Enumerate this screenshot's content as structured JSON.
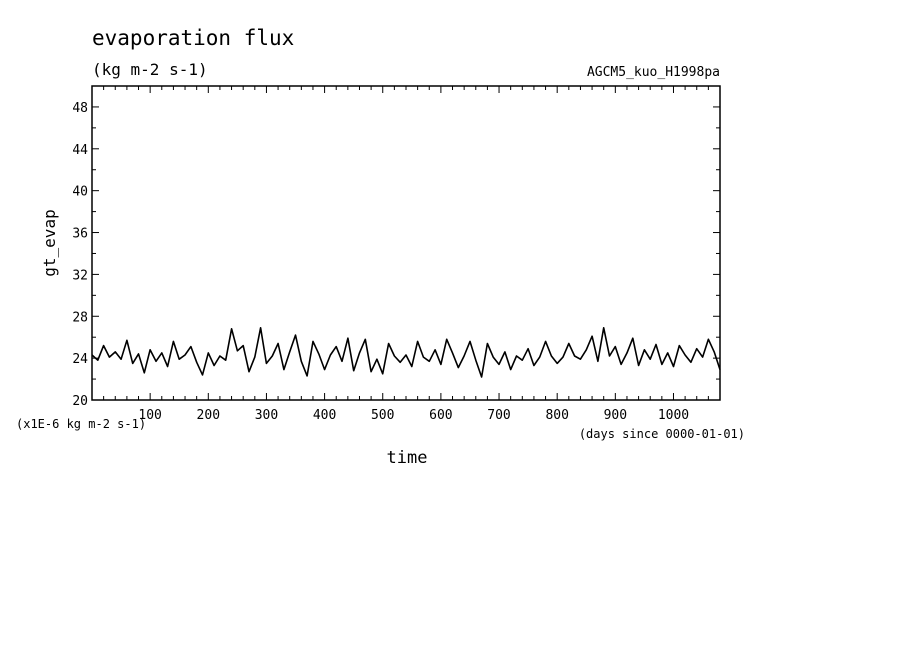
{
  "chart_data": {
    "type": "line",
    "title": "evaporation flux",
    "units": "(kg m-2 s-1)",
    "dataset": "AGCM5_kuo_H1998pa",
    "ylabel": "gt_evap",
    "xlabel": "time",
    "y_scale_note": "(x1E-6 kg m-2 s-1)",
    "x_unit_note": "(days since 0000-01-01)",
    "xlim": [
      0,
      1080
    ],
    "ylim": [
      20,
      50
    ],
    "x_ticks": [
      100,
      200,
      300,
      400,
      500,
      600,
      700,
      800,
      900,
      1000
    ],
    "y_ticks": [
      20,
      24,
      28,
      32,
      36,
      40,
      44,
      48
    ],
    "x_tick_labels": [
      "100",
      "200",
      "300",
      "400",
      "500",
      "600",
      "700",
      "800",
      "900",
      "1000"
    ],
    "y_tick_labels": [
      "20",
      "24",
      "28",
      "32",
      "36",
      "40",
      "44",
      "48"
    ],
    "series": [
      {
        "x": [
          0,
          10,
          20,
          30,
          40,
          50,
          60,
          70,
          80,
          90,
          100,
          110,
          120,
          130,
          140,
          150,
          160,
          170,
          180,
          190,
          200,
          210,
          220,
          230,
          240,
          250,
          260,
          270,
          280,
          290,
          300,
          310,
          320,
          330,
          340,
          350,
          360,
          370,
          380,
          390,
          400,
          410,
          420,
          430,
          440,
          450,
          460,
          470,
          480,
          490,
          500,
          510,
          520,
          530,
          540,
          550,
          560,
          570,
          580,
          590,
          600,
          610,
          620,
          630,
          640,
          650,
          660,
          670,
          680,
          690,
          700,
          710,
          720,
          730,
          740,
          750,
          760,
          770,
          780,
          790,
          800,
          810,
          820,
          830,
          840,
          850,
          860,
          870,
          880,
          890,
          900,
          910,
          920,
          930,
          940,
          950,
          960,
          970,
          980,
          990,
          1000,
          1010,
          1020,
          1030,
          1040,
          1050,
          1060,
          1070,
          1080
        ],
        "values": [
          24.3,
          23.8,
          25.2,
          24.1,
          24.6,
          23.9,
          25.7,
          23.5,
          24.4,
          22.6,
          24.8,
          23.7,
          24.5,
          23.2,
          25.6,
          23.9,
          24.3,
          25.1,
          23.6,
          22.4,
          24.5,
          23.3,
          24.2,
          23.8,
          26.8,
          24.7,
          25.2,
          22.7,
          24.1,
          26.9,
          23.5,
          24.2,
          25.4,
          22.9,
          24.6,
          26.2,
          23.7,
          22.3,
          25.6,
          24.4,
          22.9,
          24.3,
          25.1,
          23.7,
          25.9,
          22.8,
          24.5,
          25.8,
          22.7,
          23.9,
          22.5,
          25.4,
          24.2,
          23.6,
          24.3,
          23.2,
          25.6,
          24.1,
          23.7,
          24.8,
          23.4,
          25.8,
          24.5,
          23.1,
          24.2,
          25.6,
          23.8,
          22.2,
          25.4,
          24.1,
          23.4,
          24.6,
          22.9,
          24.2,
          23.8,
          24.9,
          23.3,
          24.1,
          25.6,
          24.2,
          23.5,
          24.1,
          25.4,
          24.2,
          23.9,
          24.8,
          26.1,
          23.7,
          26.9,
          24.2,
          25.1,
          23.4,
          24.5,
          25.9,
          23.3,
          24.8,
          23.9,
          25.3,
          23.4,
          24.5,
          23.2,
          25.2,
          24.3,
          23.6,
          24.9,
          24.1,
          25.8,
          24.6,
          22.9
        ]
      }
    ]
  }
}
